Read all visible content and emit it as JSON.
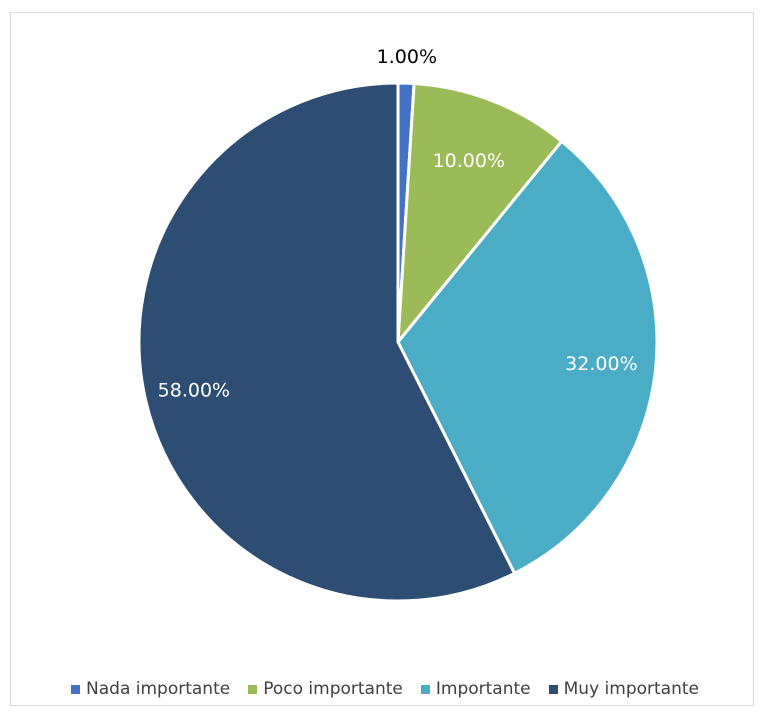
{
  "chart_data": {
    "type": "pie",
    "title": "",
    "categories": [
      "Nada importante",
      "Poco importante",
      "Importante",
      "Muy importante"
    ],
    "values": [
      1.0,
      10.0,
      32.0,
      58.0
    ],
    "labels": [
      "1.00%",
      "10.00%",
      "32.00%",
      "58.00%"
    ],
    "colors": [
      "#4472c4",
      "#9bbb59",
      "#4bacc6",
      "#2e4d73"
    ],
    "label_colors": [
      "#000000",
      "#ffffff",
      "#ffffff",
      "#ffffff"
    ],
    "legend_position": "bottom",
    "start_angle": "top",
    "direction": "clockwise"
  }
}
